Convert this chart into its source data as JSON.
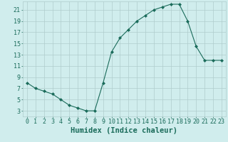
{
  "x": [
    0,
    1,
    2,
    3,
    4,
    5,
    6,
    7,
    8,
    9,
    10,
    11,
    12,
    13,
    14,
    15,
    16,
    17,
    18,
    19,
    20,
    21,
    22,
    23
  ],
  "y": [
    8,
    7,
    6.5,
    6,
    5,
    4,
    3.5,
    3,
    3,
    8,
    13.5,
    16,
    17.5,
    19,
    20,
    21,
    21.5,
    22,
    22,
    19,
    14.5,
    12,
    12,
    12
  ],
  "line_color": "#1a6b5a",
  "marker": "D",
  "marker_size": 2.0,
  "bg_color": "#d0eded",
  "grid_color": "#b0cccc",
  "xlabel": "Humidex (Indice chaleur)",
  "xlim": [
    -0.5,
    23.5
  ],
  "ylim": [
    2,
    22.5
  ],
  "xticks": [
    0,
    1,
    2,
    3,
    4,
    5,
    6,
    7,
    8,
    9,
    10,
    11,
    12,
    13,
    14,
    15,
    16,
    17,
    18,
    19,
    20,
    21,
    22,
    23
  ],
  "yticks": [
    3,
    5,
    7,
    9,
    11,
    13,
    15,
    17,
    19,
    21
  ],
  "xlabel_color": "#1a6b5a",
  "tick_color": "#1a6b5a",
  "xlabel_fontsize": 7.5,
  "tick_fontsize": 6.0
}
